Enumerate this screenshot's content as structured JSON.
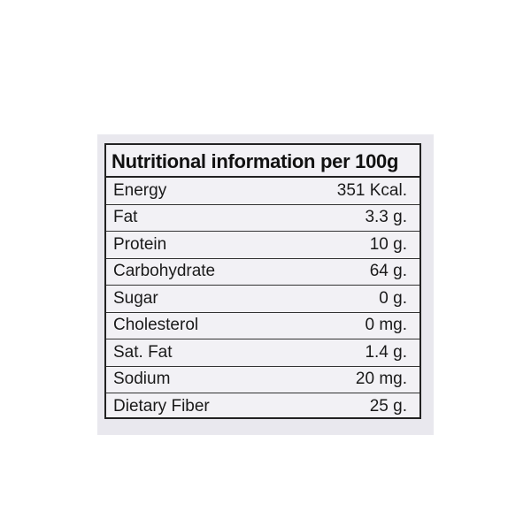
{
  "title": "Nutritional information per 100g",
  "rows": [
    {
      "name": "Energy",
      "value": "351 Kcal."
    },
    {
      "name": "Fat",
      "value": "3.3 g."
    },
    {
      "name": "Protein",
      "value": "10 g."
    },
    {
      "name": "Carbohydrate",
      "value": "64 g."
    },
    {
      "name": "Sugar",
      "value": "0 g."
    },
    {
      "name": "Cholesterol",
      "value": "0 mg."
    },
    {
      "name": "Sat. Fat",
      "value": "1.4 g."
    },
    {
      "name": "Sodium",
      "value": "20 mg."
    },
    {
      "name": "Dietary Fiber",
      "value": "25 g."
    }
  ]
}
